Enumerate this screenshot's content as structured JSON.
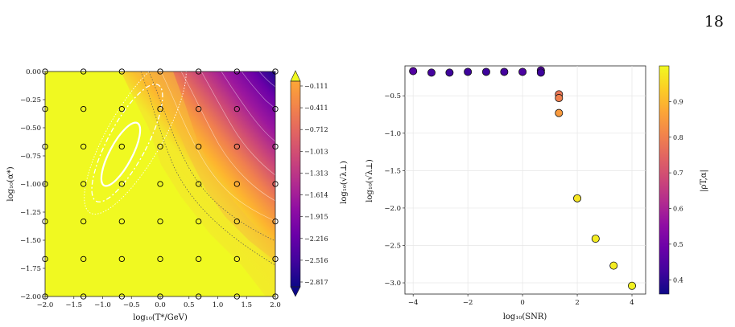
{
  "page_number": "18",
  "chart_data": [
    {
      "type": "heatmap",
      "title": "",
      "xlabel": "log₁₀(T*/GeV)",
      "ylabel": "log₁₀(α*)",
      "colorbar_label": "log₁₀(√λ⊥)",
      "colormap": "plasma",
      "xlim": [
        -2.0,
        2.0
      ],
      "ylim": [
        -2.0,
        0.0
      ],
      "x_ticks": [
        "−2.0",
        "−1.5",
        "−1.0",
        "−0.5",
        "0.0",
        "0.5",
        "1.0",
        "1.5",
        "2.0"
      ],
      "y_ticks": [
        "0.00",
        "−0.25",
        "−0.50",
        "−0.75",
        "−1.00",
        "−1.25",
        "−1.50",
        "−1.75",
        "−2.00"
      ],
      "colorbar_ticks": [
        "−0.111",
        "−0.411",
        "−0.712",
        "−1.013",
        "−1.313",
        "−1.614",
        "−1.915",
        "−2.216",
        "−2.516",
        "−2.817"
      ],
      "grid_x": [
        -2.0,
        -1.333,
        -0.667,
        0.0,
        0.667,
        1.333,
        2.0
      ],
      "grid_y": [
        0.0,
        -0.333,
        -0.667,
        -1.0,
        -1.333,
        -1.667,
        -2.0
      ],
      "contours": [
        "solid",
        "dashed",
        "dotted"
      ],
      "colorbar_extend": "both"
    },
    {
      "type": "scatter",
      "title": "",
      "xlabel": "log₁₀(SNR)",
      "ylabel": "log₁₀(√λ⊥)",
      "colorbar_label": "|ρT,α|",
      "colormap": "plasma",
      "xlim": [
        -4.3,
        4.5
      ],
      "ylim": [
        -3.15,
        -0.1
      ],
      "x_ticks": [
        "−4",
        "−2",
        "0",
        "2",
        "4"
      ],
      "y_ticks": [
        "−0.5",
        "−1.0",
        "−1.5",
        "−2.0",
        "−2.5",
        "−3.0"
      ],
      "colorbar_ticks": [
        "0.9",
        "0.8",
        "0.7",
        "0.6",
        "0.5",
        "0.4"
      ],
      "colorbar_range": [
        0.36,
        1.0
      ],
      "grid": true,
      "points": [
        {
          "x": -4.0,
          "y": -0.17,
          "c": 0.45
        },
        {
          "x": -3.33,
          "y": -0.19,
          "c": 0.43
        },
        {
          "x": -2.67,
          "y": -0.19,
          "c": 0.42
        },
        {
          "x": -2.0,
          "y": -0.18,
          "c": 0.42
        },
        {
          "x": -1.33,
          "y": -0.18,
          "c": 0.42
        },
        {
          "x": -0.67,
          "y": -0.18,
          "c": 0.43
        },
        {
          "x": 0.0,
          "y": -0.18,
          "c": 0.44
        },
        {
          "x": 0.67,
          "y": -0.16,
          "c": 0.45
        },
        {
          "x": 0.67,
          "y": -0.19,
          "c": 0.42
        },
        {
          "x": 1.33,
          "y": -0.48,
          "c": 0.78
        },
        {
          "x": 1.33,
          "y": -0.53,
          "c": 0.8
        },
        {
          "x": 1.33,
          "y": -0.73,
          "c": 0.85
        },
        {
          "x": 2.0,
          "y": -1.87,
          "c": 0.97
        },
        {
          "x": 2.67,
          "y": -2.41,
          "c": 0.98
        },
        {
          "x": 3.33,
          "y": -2.77,
          "c": 0.98
        },
        {
          "x": 4.0,
          "y": -3.04,
          "c": 0.99
        }
      ]
    }
  ]
}
